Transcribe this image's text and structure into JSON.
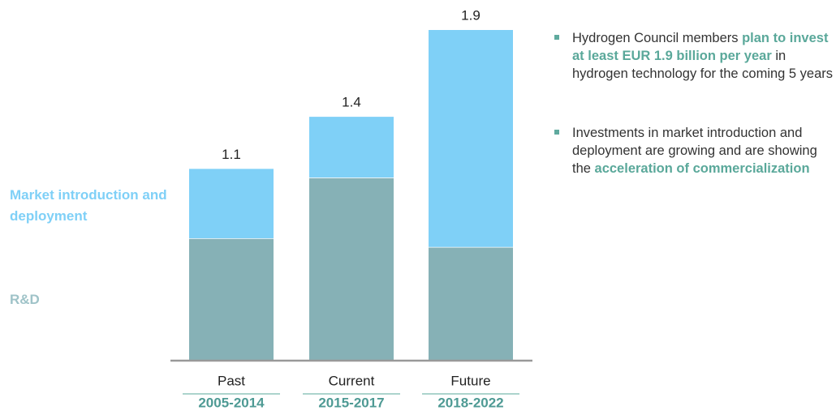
{
  "chart_data": {
    "type": "stacked-bar",
    "categories": [
      "Past",
      "Current",
      "Future"
    ],
    "periods": [
      "2005-2014",
      "2015-2017",
      "2018-2022"
    ],
    "series": [
      {
        "name": "R&D",
        "color": "#86b1b6",
        "values": [
          0.7,
          1.05,
          0.65
        ]
      },
      {
        "name": "Market introduction and deployment",
        "color": "#7fd0f7",
        "values": [
          0.4,
          0.35,
          1.25
        ]
      }
    ],
    "totals": [
      1.1,
      1.4,
      1.9
    ],
    "ylim": [
      0,
      1.9
    ]
  },
  "notes": [
    [
      "Hydrogen Council members ",
      "plan to invest at least EUR 1.9 billion per year",
      " in hydrogen technology for the coming 5 years"
    ],
    [
      "Investments in market introduction and deployment are growing and are showing the ",
      "acceleration of commercialization"
    ]
  ]
}
